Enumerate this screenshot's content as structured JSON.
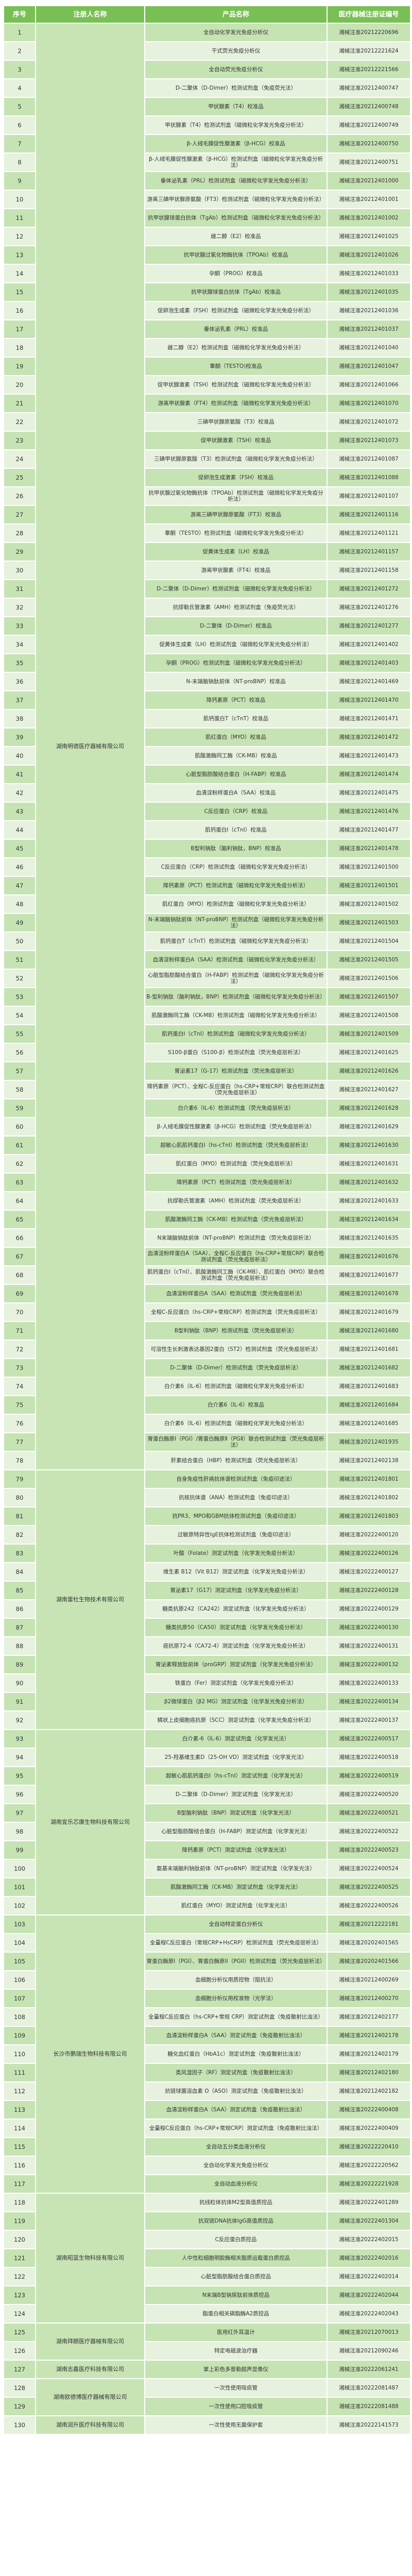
{
  "colors": {
    "header_bg": "#79bf55",
    "row_dark": "#c6e3b3",
    "row_light": "#e6f1de",
    "registrant_bg": "#c8e4b5"
  },
  "table": {
    "headers": [
      "序号",
      "注册人名称",
      "产品名称",
      "医疗器械注册证编号"
    ],
    "registrants": [
      {
        "name": "湖南明德医疗器械有限公司",
        "items": [
          {
            "no": "1",
            "product": "全自动化学发光免疫分析仪",
            "reg_no": "湘械注准20212220696"
          },
          {
            "no": "2",
            "product": "干式荧光免疫分析仪",
            "reg_no": "湘械注准20212221624"
          },
          {
            "no": "3",
            "product": "全自动荧光免疫分析仪",
            "reg_no": "湘械注准20212221566"
          },
          {
            "no": "4",
            "product": "D-二聚体（D-Dimer）检测试剂盒（免疫荧光法）",
            "reg_no": "湘械注准20212400747"
          },
          {
            "no": "5",
            "product": "甲状腺素（T4）校准品",
            "reg_no": "湘械注准20212400748"
          },
          {
            "no": "6",
            "product": "甲状腺素（T4）检测试剂盒（磁微粒化学发光免疫分析法）",
            "reg_no": "湘械注准20212400749"
          },
          {
            "no": "7",
            "product": "β-人绒毛膜促性腺激素（β-HCG）校准品",
            "reg_no": "湘械注准20212400750"
          },
          {
            "no": "8",
            "product": "β-人绒毛膜促性腺激素（β-HCG）检测试剂盒（磁微粒化学发光免疫分析法）",
            "reg_no": "湘械注准20212400751"
          },
          {
            "no": "9",
            "product": "垂体泌乳素（PRL）检测试剂盒（磁微粒化学发光免疫分析法）",
            "reg_no": "湘械注准20212401000"
          },
          {
            "no": "10",
            "product": "游离三碘甲状腺原氨酸（FT3）检测试剂盒（磁微粒化学发光免疫分析法）",
            "reg_no": "湘械注准20212401001"
          },
          {
            "no": "11",
            "product": "抗甲状腺球蛋白抗体（TgAb）检测试剂盒（磁微粒化学发光免疫分析法）",
            "reg_no": "湘械注准20212401002"
          },
          {
            "no": "12",
            "product": "雌二醇（E2）校准品",
            "reg_no": "湘械注准20212401025"
          },
          {
            "no": "13",
            "product": "抗甲状腺过氧化物酶抗体（TPOAb）校准品",
            "reg_no": "湘械注准20212401026"
          },
          {
            "no": "14",
            "product": "孕酮（PROG）校准品",
            "reg_no": "湘械注准20212401033"
          },
          {
            "no": "15",
            "product": "抗甲状腺球蛋白抗体（TgAb）校准品",
            "reg_no": "湘械注准20212401035"
          },
          {
            "no": "16",
            "product": "促卵泡生成素（FSH）检测试剂盒（磁微粒化学发光免疫分析法）",
            "reg_no": "湘械注准20212401036"
          },
          {
            "no": "17",
            "product": "垂体泌乳素（PRL）校准品",
            "reg_no": "湘械注准20212401037"
          },
          {
            "no": "18",
            "product": "雌二醇（E2）检测试剂盒（磁微粒化学发光免疫分析法）",
            "reg_no": "湘械注准20212401040"
          },
          {
            "no": "19",
            "product": "睾酮（TESTO)校准品",
            "reg_no": "湘械注准20212401047"
          },
          {
            "no": "20",
            "product": "促甲状腺激素（TSH）检测试剂盒（磁微粒化学发光免疫分析法）",
            "reg_no": "湘械注准20212401066"
          },
          {
            "no": "21",
            "product": "游离甲状腺素（FT4）检测试剂盒（磁微粒化学发光免疫分析法）",
            "reg_no": "湘械注准20212401070"
          },
          {
            "no": "22",
            "product": "三碘甲状腺原氨酸（T3）校准品",
            "reg_no": "湘械注准20212401072"
          },
          {
            "no": "23",
            "product": "促甲状腺激素（TSH）校准品",
            "reg_no": "湘械注准20212401073"
          },
          {
            "no": "24",
            "product": "三碘甲状腺原氨酸（T3）检测试剂盒（磁微粒化学发光免疫分析法）",
            "reg_no": "湘械注准20212401087"
          },
          {
            "no": "25",
            "product": "促卵泡生成激素（FSH）校准品",
            "reg_no": "湘械注准20212401088"
          },
          {
            "no": "26",
            "product": "抗甲状腺过氧化物酶抗体（TPOAb）检测试剂盒（磁微粒化学发光免疫分析法）",
            "reg_no": "湘械注准20212401107"
          },
          {
            "no": "27",
            "product": "游离三碘甲状腺原氨酸（FT3）校准品",
            "reg_no": "湘械注准20212401116"
          },
          {
            "no": "28",
            "product": "睾酮（TESTO）检测试剂盒（磁微粒化学发光免疫分析法）",
            "reg_no": "湘械注准20212401121"
          },
          {
            "no": "29",
            "product": "促黄体生成素（LH）校准品",
            "reg_no": "湘械注准20212401157"
          },
          {
            "no": "30",
            "product": "游离甲状腺素（FT4）校准品",
            "reg_no": "湘械注准20212401158"
          },
          {
            "no": "31",
            "product": "D-二聚体（D-Dimer）检测试剂盒（磁微粒化学发光免疫分析法）",
            "reg_no": "湘械注准20212401272"
          },
          {
            "no": "32",
            "product": "抗缪勒氏管激素（AMH）检测试剂盒（免疫荧光法）",
            "reg_no": "湘械注准20212401276"
          },
          {
            "no": "33",
            "product": "D-二聚体（D-Dimer）校准品",
            "reg_no": "湘械注准20212401277"
          },
          {
            "no": "34",
            "product": "促黄体生成素（LH）检测试剂盒（磁微粒化学发光免疫分析法）",
            "reg_no": "湘械注准20212401402"
          },
          {
            "no": "35",
            "product": "孕酮（PROG）检测试剂盒（磁微粒化学发光免疫分析法）",
            "reg_no": "湘械注准20212401403"
          },
          {
            "no": "36",
            "product": "N-末端脑钠肽前体（NT-proBNP）校准品",
            "reg_no": "湘械注准20212401469"
          },
          {
            "no": "37",
            "product": "降钙素原（PCT）校准品",
            "reg_no": "湘械注准20212401470"
          },
          {
            "no": "38",
            "product": "肌钙蛋白T（cTnT）校准品",
            "reg_no": "湘械注准20212401471"
          },
          {
            "no": "39",
            "product": "肌红蛋白（MYO）校准品",
            "reg_no": "湘械注准20212401472"
          },
          {
            "no": "40",
            "product": "肌酸激酶同工酶（CK-MB）校准品",
            "reg_no": "湘械注准20212401473"
          },
          {
            "no": "41",
            "product": "心脏型脂肪酸结合蛋白（H-FABP）校准品",
            "reg_no": "湘械注准20212401474"
          },
          {
            "no": "42",
            "product": "血清淀粉样蛋白A（SAA）校准品",
            "reg_no": "湘械注准20212401475"
          },
          {
            "no": "43",
            "product": "C反应蛋白（CRP）校准品",
            "reg_no": "湘械注准20212401476"
          },
          {
            "no": "44",
            "product": "肌钙蛋白I（cTnI）校准品",
            "reg_no": "湘械注准20212401477"
          },
          {
            "no": "45",
            "product": "B型利钠肽（脑利钠肽，BNP）校准品",
            "reg_no": "湘械注准20212401478"
          },
          {
            "no": "46",
            "product": "C反应蛋白（CRP）检测试剂盒（磁微粒化学发光免疫分析法）",
            "reg_no": "湘械注准20212401500"
          },
          {
            "no": "47",
            "product": "降钙素原（PCT）检测试剂盒（磁微粒化学发光免疫分析法）",
            "reg_no": "湘械注准20212401501"
          },
          {
            "no": "48",
            "product": "肌红蛋白（MYO）检测试剂盒（磁微粒化学发光免疫分析法）",
            "reg_no": "湘械注准20212401502"
          },
          {
            "no": "49",
            "product": "N-末端脑钠肽前体（NT-proBNP）检测试剂盒（磁微粒化学发光免疫分析法）",
            "reg_no": "湘械注准20212401503"
          },
          {
            "no": "50",
            "product": "肌钙蛋白T（cTnT）检测试剂盒（磁微粒化学发光免疫分析法）",
            "reg_no": "湘械注准20212401504"
          },
          {
            "no": "51",
            "product": "血清淀粉样蛋白A（SAA）检测试剂盒（磁微粒化学发光免疫分析法）",
            "reg_no": "湘械注准20212401505"
          },
          {
            "no": "52",
            "product": "心脏型脂肪酸结合蛋白（H-FABP）检测试剂盒（磁微粒化学发光免疫分析法）",
            "reg_no": "湘械注准20212401506"
          },
          {
            "no": "53",
            "product": "B-型利钠肽（脑利钠肽，BNP）检测试剂盒（磁微粒化学发光免疫分析法）",
            "reg_no": "湘械注准20212401507"
          },
          {
            "no": "54",
            "product": "肌酸激酶同工酶（CK-MB）检测试剂盒（磁微粒化学发光免疫分析法）",
            "reg_no": "湘械注准20212401508"
          },
          {
            "no": "55",
            "product": "肌钙蛋白I（cTnI）检测试剂盒（磁微粒化学发光免疫分析法）",
            "reg_no": "湘械注准20212401509"
          },
          {
            "no": "56",
            "product": "S100-β蛋白（S100-β）检测试剂盒（荧光免疫层析法）",
            "reg_no": "湘械注准20212401625"
          },
          {
            "no": "57",
            "product": "胃泌素17（G-17）检测试剂盒（荧光免疫层析法）",
            "reg_no": "湘械注准20212401626"
          },
          {
            "no": "58",
            "product": "降钙素原（PCT）、全程C-反应蛋白（hs-CRP+常规CRP）联合检测试剂盒（荧光免疫层析法）",
            "reg_no": "湘械注准20212401627"
          },
          {
            "no": "59",
            "product": "白介素6（IL-6）检测试剂盒（荧光免疫层析法）",
            "reg_no": "湘械注准20212401628"
          },
          {
            "no": "60",
            "product": "β-人绒毛膜促性腺激素（β-HCG）检测试剂盒（荧光免疫层析法）",
            "reg_no": "湘械注准20212401629"
          },
          {
            "no": "61",
            "product": "超敏心肌肌钙蛋白I（hs-cTnI）检测试剂盒（荧光免疫层析法）",
            "reg_no": "湘械注准20212401630"
          },
          {
            "no": "62",
            "product": "肌红蛋白（MYO）检测试剂盒（荧光免疫层析法）",
            "reg_no": "湘械注准20212401631"
          },
          {
            "no": "63",
            "product": "降钙素原（PCT）检测试剂盒（荧光免疫层析法）",
            "reg_no": "湘械注准20212401632"
          },
          {
            "no": "64",
            "product": "抗缪勒氏管激素（AMH）检测试剂盒（荧光免疫层析法）",
            "reg_no": "湘械注准20212401633"
          },
          {
            "no": "65",
            "product": "肌酸激酶同工酶（CK-MB）检测试剂盒（荧光免疫层析法）",
            "reg_no": "湘械注准20212401634"
          },
          {
            "no": "66",
            "product": "N末端脑钠肽前体（NT-proBNP）检测试剂盒（荧光免疫层析法）",
            "reg_no": "湘械注准20212401635"
          },
          {
            "no": "67",
            "product": "血清淀粉样蛋白A（SAA）、全程C-反应蛋白（hs-CRP+常规CRP）联合检测试剂盒（荧光免疫层析法）",
            "reg_no": "湘械注准20212401676"
          },
          {
            "no": "68",
            "product": "肌钙蛋白I（cTnI）、肌酸激酶同工酶（CK-MB）、肌红蛋白（MYO）联合检测试剂盒（荧光免疫层析法）",
            "reg_no": "湘械注准20212401677"
          },
          {
            "no": "69",
            "product": "血清淀粉样蛋白A（SAA）检测试剂盒（荧光免疫层析法）",
            "reg_no": "湘械注准20212401678"
          },
          {
            "no": "70",
            "product": "全程C-反应蛋白（hs-CRP+常规CRP）检测试剂盒（荧光免疫层析法）",
            "reg_no": "湘械注准20212401679"
          },
          {
            "no": "71",
            "product": "B型利钠肽（BNP）检测试剂盒（荧光免疫层析法）",
            "reg_no": "湘械注准20212401680"
          },
          {
            "no": "72",
            "product": "可溶性生长刺激表达基因2蛋白（ST2）检测试剂盒（荧光免疫层析法）",
            "reg_no": "湘械注准20212401681"
          },
          {
            "no": "73",
            "product": "D-二聚体（D-Dimer）检测试剂盒（荧光免疫层析法）",
            "reg_no": "湘械注准20212401682"
          },
          {
            "no": "74",
            "product": "白介素6（IL-6）检测试剂盒（磁微粒化学发光免疫分析法）",
            "reg_no": "湘械注准20212401683"
          },
          {
            "no": "75",
            "product": "白介素6（IL-6）校准品",
            "reg_no": "湘械注准20212401684"
          },
          {
            "no": "76",
            "product": "白介素6（IL-6）检测试剂盒（磁微粒化学发光免疫分析法）",
            "reg_no": "湘械注准20212401685"
          },
          {
            "no": "77",
            "product": "胃蛋白酶原Ⅰ（PGⅠ）/胃蛋白酶原Ⅱ（PGⅡ）联合检测试剂盒（荧光免疫层析法）",
            "reg_no": "湘械注准20212401935"
          },
          {
            "no": "78",
            "product": "肝素结合蛋白（HBP）检测试剂盒（荧光免疫层析法）",
            "reg_no": "湘械注准20212402138"
          }
        ]
      },
      {
        "name": "湖南雷杜生物技术有限公司",
        "items": [
          {
            "no": "79",
            "product": "自身免疫性肝病抗体谱检测试剂盒（免疫印迹法）",
            "reg_no": "湘械注准20212401801"
          },
          {
            "no": "80",
            "product": "抗核抗体谱（ANA）检测试剂盒（免疫印迹法）",
            "reg_no": "湘械注准20212401802"
          },
          {
            "no": "81",
            "product": "抗PR3、MPO和GBM抗体检测试剂盒（免疫印迹法）",
            "reg_no": "湘械注准20212401803"
          },
          {
            "no": "82",
            "product": "过敏原特异性IgE抗体检测试剂盒（免疫印迹法）",
            "reg_no": "湘械注准20222400120"
          },
          {
            "no": "83",
            "product": "叶酸（Folate）测定试剂盒（化学发光免疫分析法）",
            "reg_no": "湘械注准20222400126"
          },
          {
            "no": "84",
            "product": "维生素 B12（Vit B12）测定试剂盒（化学发光免疫分析法）",
            "reg_no": "湘械注准20222400127"
          },
          {
            "no": "85",
            "product": "胃泌素17（G17）测定试剂盒（化学发光免疫分析法）",
            "reg_no": "湘械注准20222400128"
          },
          {
            "no": "86",
            "product": "糖类抗原242（CA242）测定试剂盒（化学发光免疫分析法）",
            "reg_no": "湘械注准20222400129"
          },
          {
            "no": "87",
            "product": "糖类抗原50（CA50）测定试剂盒（化学发光免疫分析法）",
            "reg_no": "湘械注准20222400130"
          },
          {
            "no": "88",
            "product": "癌抗原72-4（CA72-4）测定试剂盒（化学发光免疫分析法）",
            "reg_no": "湘械注准20222400131"
          },
          {
            "no": "89",
            "product": "胃泌素释放肽前体（proGRP）测定试剂盒（化学发光免疫分析法）",
            "reg_no": "湘械注准20222400132"
          },
          {
            "no": "90",
            "product": "铁蛋白（Fer）测定试剂盒（化学发光免疫分析法）",
            "reg_no": "湘械注准20222400133"
          },
          {
            "no": "91",
            "product": "β2微球蛋白（β2 MG）测定试剂盒（化学发光免疫分析法）",
            "reg_no": "湘械注准20222400134"
          },
          {
            "no": "92",
            "product": "鳞状上皮细胞癌抗原（SCC）测定试剂盒（化学发光免疫分析法）",
            "reg_no": "湘械注准20222400137"
          }
        ]
      },
      {
        "name": "湖南宜乐芯康生物科技有限公司",
        "items": [
          {
            "no": "93",
            "product": "白介素-6（IL-6）测定试剂盒（化学发光法）",
            "reg_no": "湘械注准20222400517"
          },
          {
            "no": "94",
            "product": "25-羟基维生素D（25-OH VD）测定试剂盒（化学发光法）",
            "reg_no": "湘械注准20222400518"
          },
          {
            "no": "95",
            "product": "超敏心肌肌钙蛋白I（hs-cTnI）测定试剂盒（化学发光法）",
            "reg_no": "湘械注准20222400519"
          },
          {
            "no": "96",
            "product": "D-二聚体（D-Dimer）测定试剂盒（化学发光法）",
            "reg_no": "湘械注准20222400520"
          },
          {
            "no": "97",
            "product": "B型脑利钠肽（BNP）测定试剂盒（化学发光法）",
            "reg_no": "湘械注准20222400521"
          },
          {
            "no": "98",
            "product": "心脏型脂肪酸结合蛋白（H-FABP）测定试剂盒（化学发光法）",
            "reg_no": "湘械注准20222400522"
          },
          {
            "no": "99",
            "product": "降钙素原（PCT）测定试剂盒（化学发光法）",
            "reg_no": "湘械注准20222400523"
          },
          {
            "no": "100",
            "product": "氨基末端脑利钠肽前体（NT-proBNP）测定试剂盒（化学发光法）",
            "reg_no": "湘械注准20222400524"
          },
          {
            "no": "101",
            "product": "肌酸激酶同工酶（CK-MB）测定试剂盒（化学发光法）",
            "reg_no": "湘械注准20222400525"
          },
          {
            "no": "102",
            "product": "肌红蛋白（MYO）测定试剂盒（化学发光法）",
            "reg_no": "湘械注准20222400526"
          }
        ]
      },
      {
        "name": "长沙市鹏瑞生物科技有限公司",
        "items": [
          {
            "no": "103",
            "product": "全自动特定蛋白分析仪",
            "reg_no": "湘械注准20212222181"
          },
          {
            "no": "104",
            "product": "全量程C反应蛋白（常规CRP+HsCRP）检测试剂盒（荧光免疫层析法）",
            "reg_no": "湘械注准20202401565"
          },
          {
            "no": "105",
            "product": "胃蛋白酶原I（PGI）、胃蛋白酶原II（PGII）检测试剂盒（荧光免疫层析法）",
            "reg_no": "湘械注准20202401566"
          },
          {
            "no": "106",
            "product": "血细胞分析仪用质控物（阻抗法）",
            "reg_no": "湘械注准20212400269"
          },
          {
            "no": "107",
            "product": "血细胞分析仪用校准物（光学法）",
            "reg_no": "湘械注准20212400270"
          },
          {
            "no": "108",
            "product": "全量程C反应蛋白（hs-CRP+常规 CRP）测定试剂盒（免疫散射比浊法）",
            "reg_no": "湘械注准20212402177"
          },
          {
            "no": "109",
            "product": "血清淀粉样蛋白A（SAA）测定试剂盒（免疫散射比浊法）",
            "reg_no": "湘械注准20212402178"
          },
          {
            "no": "110",
            "product": "糖化血红蛋白（HbA1c）测定试剂盒（免疫散射比浊法）",
            "reg_no": "湘械注准20212402179"
          },
          {
            "no": "111",
            "product": "类风湿因子（RF）测定试剂盒（免疫散射比浊法）",
            "reg_no": "湘械注准20212402180"
          },
          {
            "no": "112",
            "product": "抗链球菌溶血素 O（ASO）测定试剂盒（免疫散射比浊法）",
            "reg_no": "湘械注准20212402182"
          },
          {
            "no": "113",
            "product": "血清淀粉样蛋白A（SAA）测定试剂盒（免疫散射比浊法）",
            "reg_no": "湘械注准20222400408"
          },
          {
            "no": "114",
            "product": "全量程C反应蛋白（hs-CRP+常规CRP）测定试剂盒（免疫散射比浊法）",
            "reg_no": "湘械注准20222400409"
          },
          {
            "no": "115",
            "product": "全自动五分类血液分析仪",
            "reg_no": "湘械注准20222220410"
          },
          {
            "no": "116",
            "product": "全自动化学发光免疫分析仪",
            "reg_no": "湘械注准20222220562"
          },
          {
            "no": "117",
            "product": "全自动血液分析仪",
            "reg_no": "湘械注准20222221928"
          }
        ]
      },
      {
        "name": "湖南昭蓝生物科技有限公司",
        "items": [
          {
            "no": "118",
            "product": "抗线粒体抗体M2型高值质控品",
            "reg_no": "湘械注准20222401289"
          },
          {
            "no": "119",
            "product": "抗双链DNA抗体IgG高值质控品",
            "reg_no": "湘械注准20222401304"
          },
          {
            "no": "120",
            "product": "C反应蛋白质控品",
            "reg_no": "湘械注准20222402015"
          },
          {
            "no": "121",
            "product": "人中性粒细胞明胶酶相关脂质运载蛋白质控品",
            "reg_no": "湘械注准20222402016"
          },
          {
            "no": "122",
            "product": "心脏型脂肪酸结合蛋白质控品",
            "reg_no": "湘械注准20222402014"
          },
          {
            "no": "123",
            "product": "N末端B型钠尿肽前体质控品",
            "reg_no": "湘械注准20222402044"
          },
          {
            "no": "124",
            "product": "脂蛋白相关磷脂酶A2质控品",
            "reg_no": "湘械注准20222402043"
          }
        ]
      },
      {
        "name": "湖南拜朗医疗器械有限公司",
        "items": [
          {
            "no": "125",
            "product": "医用红外耳温计",
            "reg_no": "湘械注准20212070013"
          },
          {
            "no": "126",
            "product": "特定电磁波治疗器",
            "reg_no": "湘械注准20212090246"
          }
        ]
      },
      {
        "name": "湖南志鑫医疗科技有限公司",
        "items": [
          {
            "no": "127",
            "product": "掌上彩色多普勒超声显像仪",
            "reg_no": "湘械注准20222061241"
          }
        ]
      },
      {
        "name": "湖南欧德博医疗器械有限公司",
        "items": [
          {
            "no": "128",
            "product": "一次性使用吸痰管",
            "reg_no": "湘械注准20222081487"
          },
          {
            "no": "129",
            "product": "一次性使用口腔吸痰管",
            "reg_no": "湘械注准20222081488"
          }
        ]
      },
      {
        "name": "湖南润升医疗科技有限公司",
        "items": [
          {
            "no": "130",
            "product": "一次性使用无菌保护套",
            "reg_no": "湘械注准20222141573"
          }
        ]
      }
    ]
  }
}
